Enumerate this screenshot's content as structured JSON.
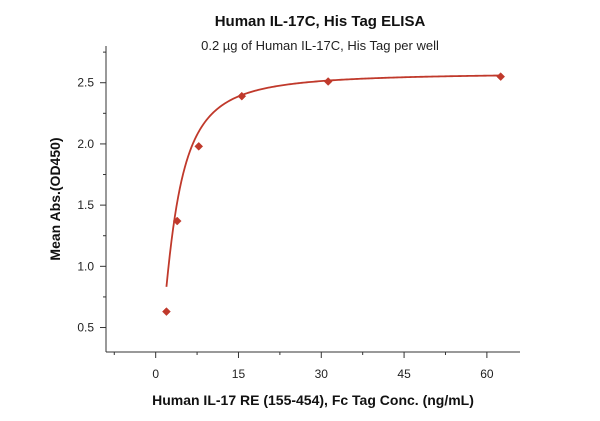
{
  "chart_data": {
    "type": "scatter",
    "title": "Human IL-17C, His Tag ELISA",
    "subtitle": "0.2 µg of Human IL-17C, His Tag per well",
    "xlabel": "Human IL-17 RE (155-454), Fc Tag Conc. (ng/mL)",
    "ylabel": "Mean Abs.(OD450)",
    "xlim": [
      -9,
      66
    ],
    "ylim": [
      0.3,
      2.8
    ],
    "x_ticks": [
      0,
      15,
      30,
      45,
      60
    ],
    "y_ticks": [
      0.5,
      1.0,
      1.5,
      2.0,
      2.5
    ],
    "x_tick_labels": [
      "0",
      "15",
      "30",
      "45",
      "60"
    ],
    "y_tick_labels": [
      "0.5",
      "1.0",
      "1.5",
      "2.0",
      "2.5"
    ],
    "grid": false,
    "series": [
      {
        "marker": "diamond",
        "color": "#c0392b",
        "x": [
          1.95,
          3.9,
          7.8,
          15.6,
          31.25,
          62.5
        ],
        "y": [
          0.63,
          1.37,
          1.98,
          2.39,
          2.51,
          2.55
        ],
        "fit": {
          "model": "four-parameter-logistic",
          "bottom": 0.0,
          "top": 2.58,
          "ec50": 3.1,
          "hill": 1.6
        }
      }
    ]
  }
}
